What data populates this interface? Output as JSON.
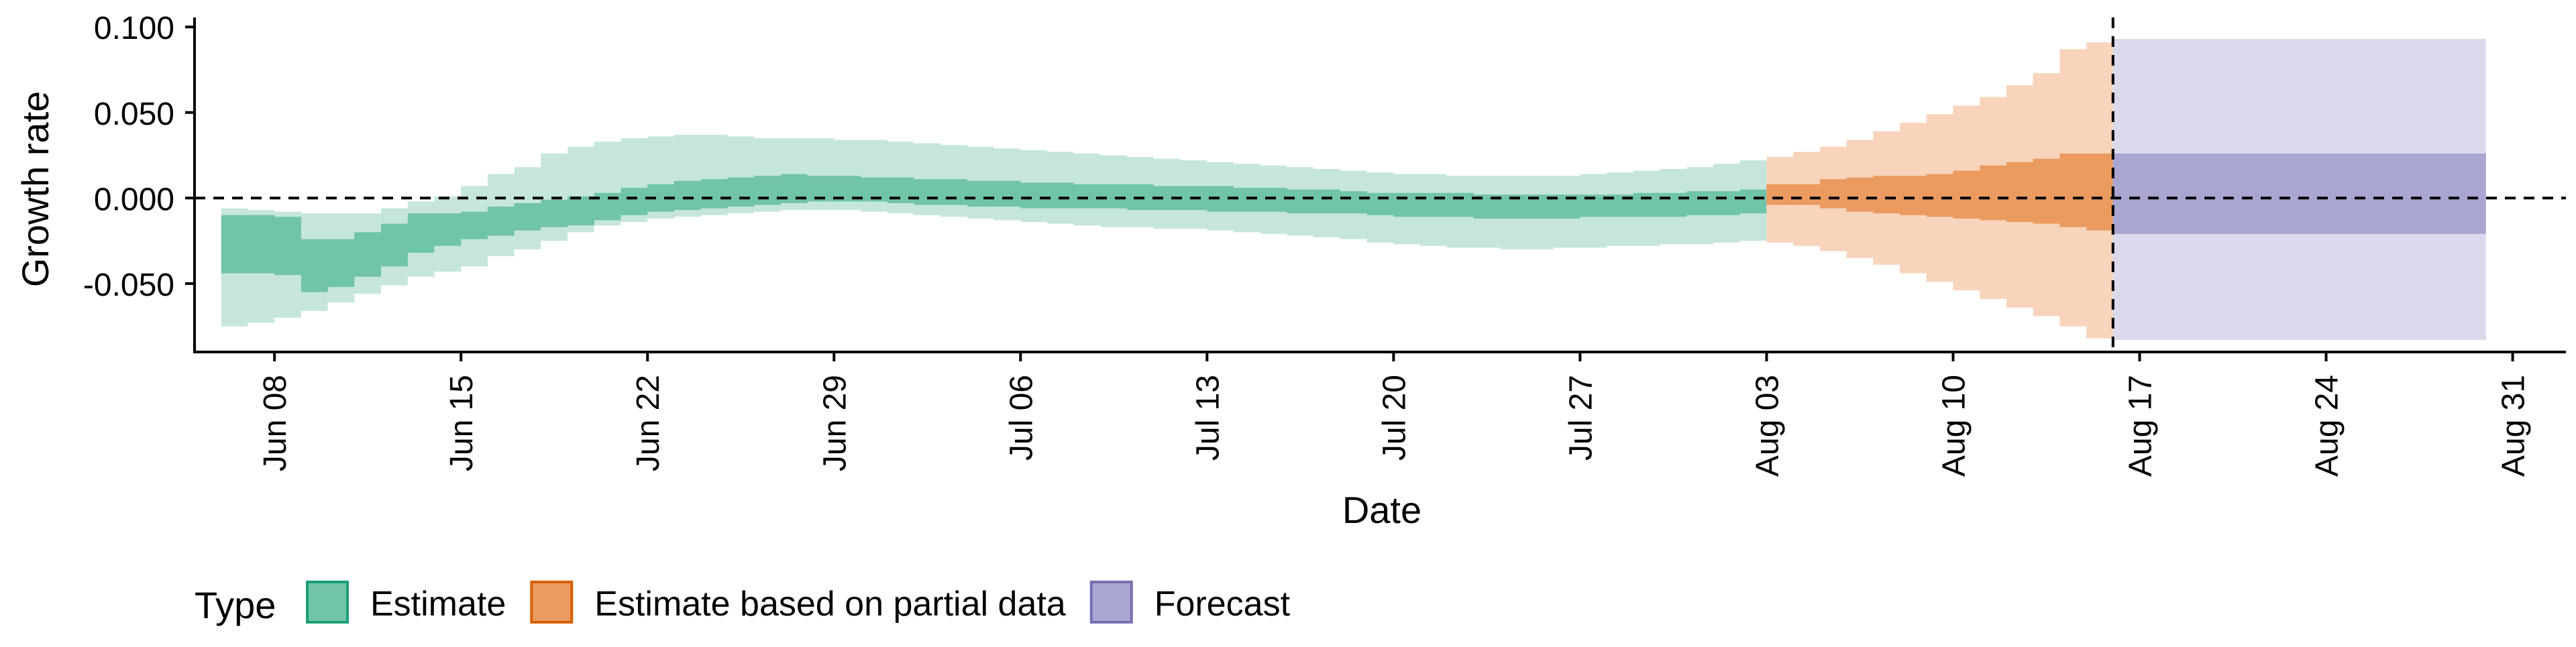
{
  "chart_data": {
    "type": "area",
    "xlabel": "Date",
    "ylabel": "Growth rate",
    "x_axis_type": "date",
    "xlim": [
      "2020-06-05",
      "2020-09-02"
    ],
    "ylim": [
      -0.09,
      0.104
    ],
    "y_ticks": [
      {
        "value": 0.1,
        "label": "0.100"
      },
      {
        "value": 0.05,
        "label": "0.050"
      },
      {
        "value": 0.0,
        "label": "0.000"
      },
      {
        "value": -0.05,
        "label": "-0.050"
      }
    ],
    "x_ticks": [
      {
        "date": "2020-06-08",
        "label": "Jun 08"
      },
      {
        "date": "2020-06-15",
        "label": "Jun 15"
      },
      {
        "date": "2020-06-22",
        "label": "Jun 22"
      },
      {
        "date": "2020-06-29",
        "label": "Jun 29"
      },
      {
        "date": "2020-07-06",
        "label": "Jul 06"
      },
      {
        "date": "2020-07-13",
        "label": "Jul 13"
      },
      {
        "date": "2020-07-20",
        "label": "Jul 20"
      },
      {
        "date": "2020-07-27",
        "label": "Jul 27"
      },
      {
        "date": "2020-08-03",
        "label": "Aug 03"
      },
      {
        "date": "2020-08-10",
        "label": "Aug 10"
      },
      {
        "date": "2020-08-17",
        "label": "Aug 17"
      },
      {
        "date": "2020-08-24",
        "label": "Aug 24"
      },
      {
        "date": "2020-08-31",
        "label": "Aug 31"
      }
    ],
    "hline": 0,
    "vline": "2020-08-16",
    "grid": false,
    "legend": {
      "title": "Type",
      "position": "bottom",
      "entries": [
        {
          "label": "Estimate",
          "series": "estimate"
        },
        {
          "label": "Estimate based on partial data",
          "series": "partial"
        },
        {
          "label": "Forecast",
          "series": "forecast"
        }
      ]
    },
    "series": [
      {
        "id": "estimate",
        "colors": {
          "outer": "#c6e6dc",
          "inner": "#70c4a8",
          "border": "#1b9e77"
        },
        "x": [
          "2020-06-07",
          "2020-06-08",
          "2020-06-09",
          "2020-06-10",
          "2020-06-11",
          "2020-06-12",
          "2020-06-13",
          "2020-06-14",
          "2020-06-15",
          "2020-06-16",
          "2020-06-17",
          "2020-06-18",
          "2020-06-19",
          "2020-06-20",
          "2020-06-21",
          "2020-06-22",
          "2020-06-23",
          "2020-06-24",
          "2020-06-25",
          "2020-06-26",
          "2020-06-27",
          "2020-06-28",
          "2020-06-29",
          "2020-06-30",
          "2020-07-01",
          "2020-07-02",
          "2020-07-03",
          "2020-07-04",
          "2020-07-05",
          "2020-07-06",
          "2020-07-07",
          "2020-07-08",
          "2020-07-09",
          "2020-07-10",
          "2020-07-11",
          "2020-07-12",
          "2020-07-13",
          "2020-07-14",
          "2020-07-15",
          "2020-07-16",
          "2020-07-17",
          "2020-07-18",
          "2020-07-19",
          "2020-07-20",
          "2020-07-21",
          "2020-07-22",
          "2020-07-23",
          "2020-07-24",
          "2020-07-25",
          "2020-07-26",
          "2020-07-27",
          "2020-07-28",
          "2020-07-29",
          "2020-07-30",
          "2020-07-31",
          "2020-08-01",
          "2020-08-02",
          "2020-08-03"
        ],
        "lower_90": [
          -0.075,
          -0.073,
          -0.07,
          -0.066,
          -0.061,
          -0.056,
          -0.051,
          -0.046,
          -0.043,
          -0.04,
          -0.034,
          -0.03,
          -0.025,
          -0.02,
          -0.016,
          -0.014,
          -0.012,
          -0.011,
          -0.01,
          -0.009,
          -0.008,
          -0.007,
          -0.007,
          -0.007,
          -0.008,
          -0.009,
          -0.01,
          -0.011,
          -0.012,
          -0.013,
          -0.014,
          -0.015,
          -0.016,
          -0.017,
          -0.017,
          -0.018,
          -0.018,
          -0.019,
          -0.02,
          -0.021,
          -0.022,
          -0.023,
          -0.024,
          -0.026,
          -0.027,
          -0.028,
          -0.029,
          -0.029,
          -0.03,
          -0.03,
          -0.029,
          -0.029,
          -0.028,
          -0.028,
          -0.027,
          -0.027,
          -0.026,
          -0.025
        ],
        "upper_90": [
          -0.006,
          -0.007,
          -0.008,
          -0.009,
          -0.009,
          -0.009,
          -0.006,
          -0.002,
          0.001,
          0.007,
          0.014,
          0.018,
          0.026,
          0.03,
          0.033,
          0.035,
          0.036,
          0.037,
          0.037,
          0.036,
          0.035,
          0.035,
          0.035,
          0.034,
          0.034,
          0.033,
          0.032,
          0.031,
          0.03,
          0.029,
          0.028,
          0.027,
          0.026,
          0.025,
          0.024,
          0.023,
          0.022,
          0.021,
          0.02,
          0.019,
          0.018,
          0.017,
          0.016,
          0.015,
          0.014,
          0.014,
          0.013,
          0.013,
          0.013,
          0.013,
          0.013,
          0.014,
          0.015,
          0.016,
          0.017,
          0.018,
          0.02,
          0.022
        ],
        "lower_50": [
          -0.044,
          -0.044,
          -0.045,
          -0.055,
          -0.052,
          -0.046,
          -0.04,
          -0.032,
          -0.028,
          -0.024,
          -0.022,
          -0.019,
          -0.017,
          -0.016,
          -0.013,
          -0.01,
          -0.008,
          -0.007,
          -0.006,
          -0.005,
          -0.004,
          -0.003,
          -0.002,
          -0.002,
          -0.002,
          -0.003,
          -0.004,
          -0.004,
          -0.005,
          -0.005,
          -0.006,
          -0.006,
          -0.006,
          -0.006,
          -0.007,
          -0.007,
          -0.007,
          -0.008,
          -0.008,
          -0.008,
          -0.009,
          -0.009,
          -0.009,
          -0.01,
          -0.011,
          -0.011,
          -0.011,
          -0.012,
          -0.012,
          -0.012,
          -0.012,
          -0.011,
          -0.011,
          -0.011,
          -0.011,
          -0.01,
          -0.01,
          -0.009
        ],
        "upper_50": [
          -0.01,
          -0.01,
          -0.011,
          -0.024,
          -0.024,
          -0.02,
          -0.015,
          -0.009,
          -0.009,
          -0.008,
          -0.005,
          -0.003,
          -0.001,
          0.001,
          0.003,
          0.006,
          0.008,
          0.01,
          0.011,
          0.012,
          0.013,
          0.014,
          0.013,
          0.013,
          0.012,
          0.012,
          0.011,
          0.011,
          0.01,
          0.01,
          0.009,
          0.009,
          0.008,
          0.008,
          0.008,
          0.007,
          0.007,
          0.007,
          0.006,
          0.006,
          0.005,
          0.005,
          0.004,
          0.003,
          0.003,
          0.003,
          0.003,
          0.002,
          0.002,
          0.002,
          0.002,
          0.002,
          0.002,
          0.003,
          0.003,
          0.004,
          0.004,
          0.005
        ]
      },
      {
        "id": "partial",
        "colors": {
          "outer": "#f8d4bc",
          "inner": "#eb9b60",
          "border": "#d95f02"
        },
        "x": [
          "2020-08-04",
          "2020-08-05",
          "2020-08-06",
          "2020-08-07",
          "2020-08-08",
          "2020-08-09",
          "2020-08-10",
          "2020-08-11",
          "2020-08-12",
          "2020-08-13",
          "2020-08-14",
          "2020-08-15",
          "2020-08-16"
        ],
        "lower_90": [
          -0.026,
          -0.028,
          -0.031,
          -0.035,
          -0.039,
          -0.044,
          -0.049,
          -0.054,
          -0.059,
          -0.064,
          -0.069,
          -0.075,
          -0.082
        ],
        "upper_90": [
          0.024,
          0.027,
          0.03,
          0.034,
          0.039,
          0.044,
          0.049,
          0.054,
          0.059,
          0.066,
          0.073,
          0.087,
          0.091
        ],
        "lower_50": [
          -0.004,
          -0.004,
          -0.006,
          -0.008,
          -0.009,
          -0.01,
          -0.011,
          -0.012,
          -0.013,
          -0.014,
          -0.015,
          -0.017,
          -0.019
        ],
        "upper_50": [
          0.008,
          0.008,
          0.011,
          0.012,
          0.013,
          0.013,
          0.014,
          0.016,
          0.019,
          0.021,
          0.023,
          0.026,
          0.026
        ]
      },
      {
        "id": "forecast",
        "colors": {
          "outer": "#dadaec",
          "inner": "#a9a6d1",
          "border": "#7570b3"
        },
        "x": [
          "2020-08-17",
          "2020-08-30"
        ],
        "lower_90": [
          -0.083,
          -0.083
        ],
        "upper_90": [
          0.093,
          0.093
        ],
        "lower_50": [
          -0.021,
          -0.021
        ],
        "upper_50": [
          0.026,
          0.026
        ]
      }
    ]
  }
}
